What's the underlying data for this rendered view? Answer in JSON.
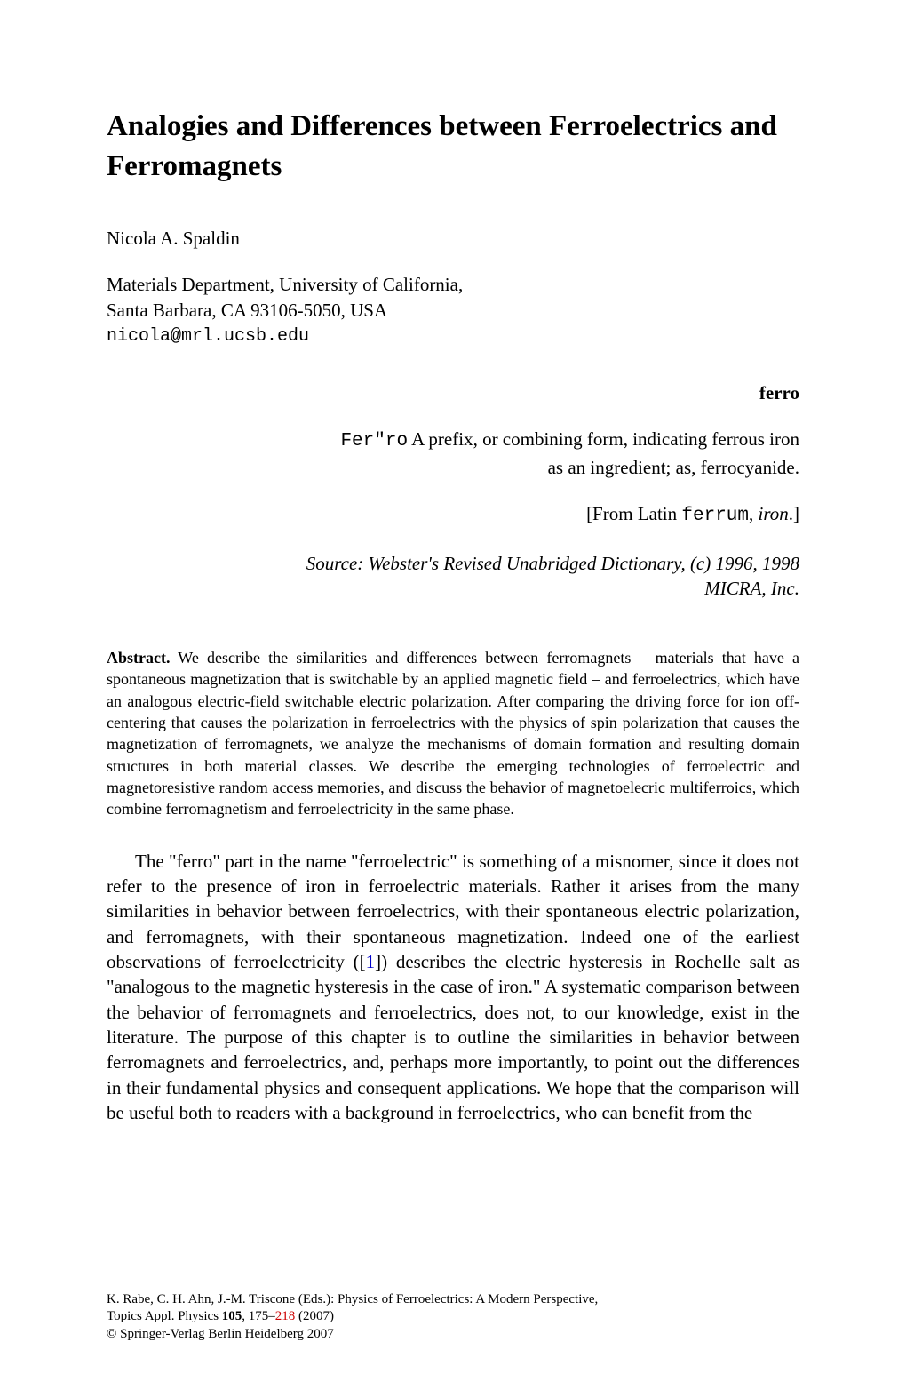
{
  "title": "Analogies and Differences between Ferroelectrics and Ferromagnets",
  "author": "Nicola A. Spaldin",
  "affiliation_line1": "Materials Department, University of California,",
  "affiliation_line2": "Santa Barbara, CA 93106-5050, USA",
  "email": "nicola@mrl.ucsb.edu",
  "ferro_heading": "ferro",
  "ferro_def_prefix": "Fer\"ro",
  "ferro_def_text": " A prefix, or combining form, indicating ferrous iron as an ingredient; as, ferrocyanide.",
  "ferro_latin_open": "[From Latin ",
  "ferro_latin_mono": "ferrum",
  "ferro_latin_comma": ", ",
  "ferro_latin_italic": "iron",
  "ferro_latin_close": ".]",
  "ferro_source": "Source: Webster's Revised Unabridged Dictionary, (c) 1996, 1998 MICRA, Inc.",
  "abstract_label": "Abstract.",
  "abstract_text": " We describe the similarities and differences between ferromagnets – materials that have a spontaneous magnetization that is switchable by an applied magnetic field – and ferroelectrics, which have an analogous electric-field switchable electric polarization. After comparing the driving force for ion off-centering that causes the polarization in ferroelectrics with the physics of spin polarization that causes the magnetization of ferromagnets, we analyze the mechanisms of domain formation and resulting domain structures in both material classes. We describe the emerging technologies of ferroelectric and magnetoresistive random access memories, and discuss the behavior of magnetoelecric multiferroics, which combine ferromagnetism and ferroelectricity in the same phase.",
  "body_part1": "The \"ferro\" part in the name \"ferroelectric\" is something of a misnomer, since it does not refer to the presence of iron in ferroelectric materials. Rather it arises from the many similarities in behavior between ferroelectrics, with their spontaneous electric polarization, and ferromagnets, with their spontaneous magnetization. Indeed one of the earliest observations of ferroelectricity ([",
  "ref1": "1",
  "body_part2": "]) describes the electric hysteresis in Rochelle salt as \"analogous to the magnetic hysteresis in the case of iron.\" A systematic comparison between the behavior of ferromagnets and ferroelectrics, does not, to our knowledge, exist in the literature. The purpose of this chapter is to outline the similarities in behavior between ferromagnets and ferroelectrics, and, perhaps more importantly, to point out the differences in their fundamental physics and consequent applications. We hope that the comparison will be useful both to readers with a background in ferroelectrics, who can benefit from the",
  "footer_line1a": "K. Rabe, C. H. Ahn, J.-M. Triscone (Eds.): Physics of Ferroelectrics: A Modern Perspective,",
  "footer_line2a": "Topics Appl. Physics ",
  "footer_vol": "105",
  "footer_pages_a": ", 175–",
  "footer_pages_red": "218",
  "footer_pages_b": " (2007)",
  "footer_line3": " Springer-Verlag Berlin Heidelberg 2007",
  "copyright": "©"
}
